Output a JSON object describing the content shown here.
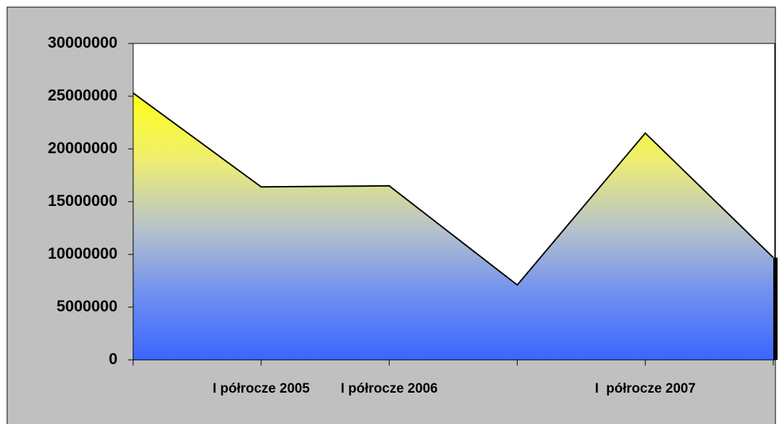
{
  "chart_data": {
    "type": "area",
    "categories": [
      null,
      "I półrocze 2005",
      "I półrocze 2006",
      null,
      "I  półrocze 2007",
      null
    ],
    "values": [
      25300000,
      16400000,
      16500000,
      7100000,
      21500000,
      9700000
    ],
    "ylim": [
      0,
      30000000
    ],
    "yticks": [
      0,
      5000000,
      10000000,
      15000000,
      20000000,
      25000000,
      30000000
    ],
    "grid": false
  }
}
